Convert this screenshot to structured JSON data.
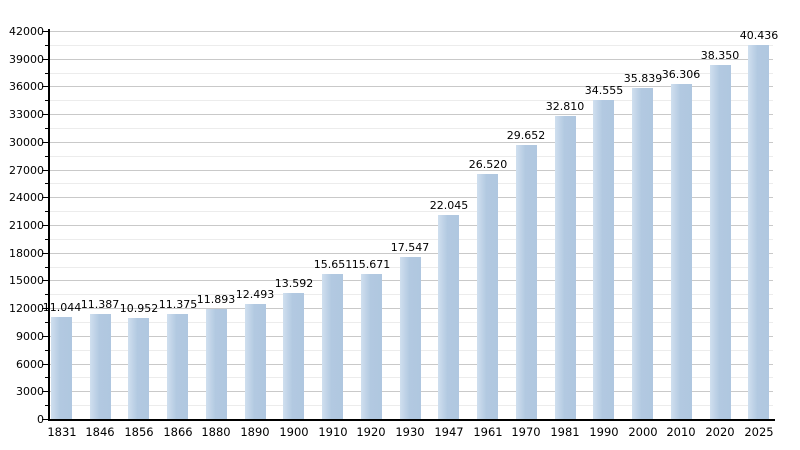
{
  "chart_data": {
    "type": "bar",
    "title": "",
    "xlabel": "",
    "ylabel": "",
    "categories": [
      "1831",
      "1846",
      "1856",
      "1866",
      "1880",
      "1890",
      "1900",
      "1910",
      "1920",
      "1930",
      "1947",
      "1961",
      "1970",
      "1981",
      "1990",
      "2000",
      "2010",
      "2020",
      "2025"
    ],
    "values": [
      11044,
      11387,
      10952,
      11375,
      11893,
      12493,
      13592,
      15651,
      15671,
      17547,
      22045,
      26520,
      29652,
      32810,
      34555,
      35839,
      36306,
      38350,
      40436
    ],
    "value_labels": [
      "11.044",
      "11.387",
      "10.952",
      "11.375",
      "11.893",
      "12.493",
      "13.592",
      "15.651",
      "15.671",
      "17.547",
      "22.045",
      "26.520",
      "29.652",
      "32.810",
      "34.555",
      "35.839",
      "36.306",
      "38.350",
      "40.436"
    ],
    "y_tick_labels": [
      "0",
      "3000",
      "6000",
      "9000",
      "12000",
      "15000",
      "18000",
      "21000",
      "24000",
      "27000",
      "30000",
      "33000",
      "36000",
      "39000",
      "42000"
    ],
    "ylim": [
      0,
      42000
    ],
    "y_major_step": 3000,
    "y_minor_step": 1500,
    "grid": "on",
    "legend": "none",
    "colors": {
      "bar": "#b2c9e1",
      "bar_light_edge": "#d0dfef",
      "grid_major": "#c9c9c9",
      "grid_minor": "#ececec",
      "axis": "#000000",
      "text": "#000000",
      "background": "#ffffff"
    }
  }
}
